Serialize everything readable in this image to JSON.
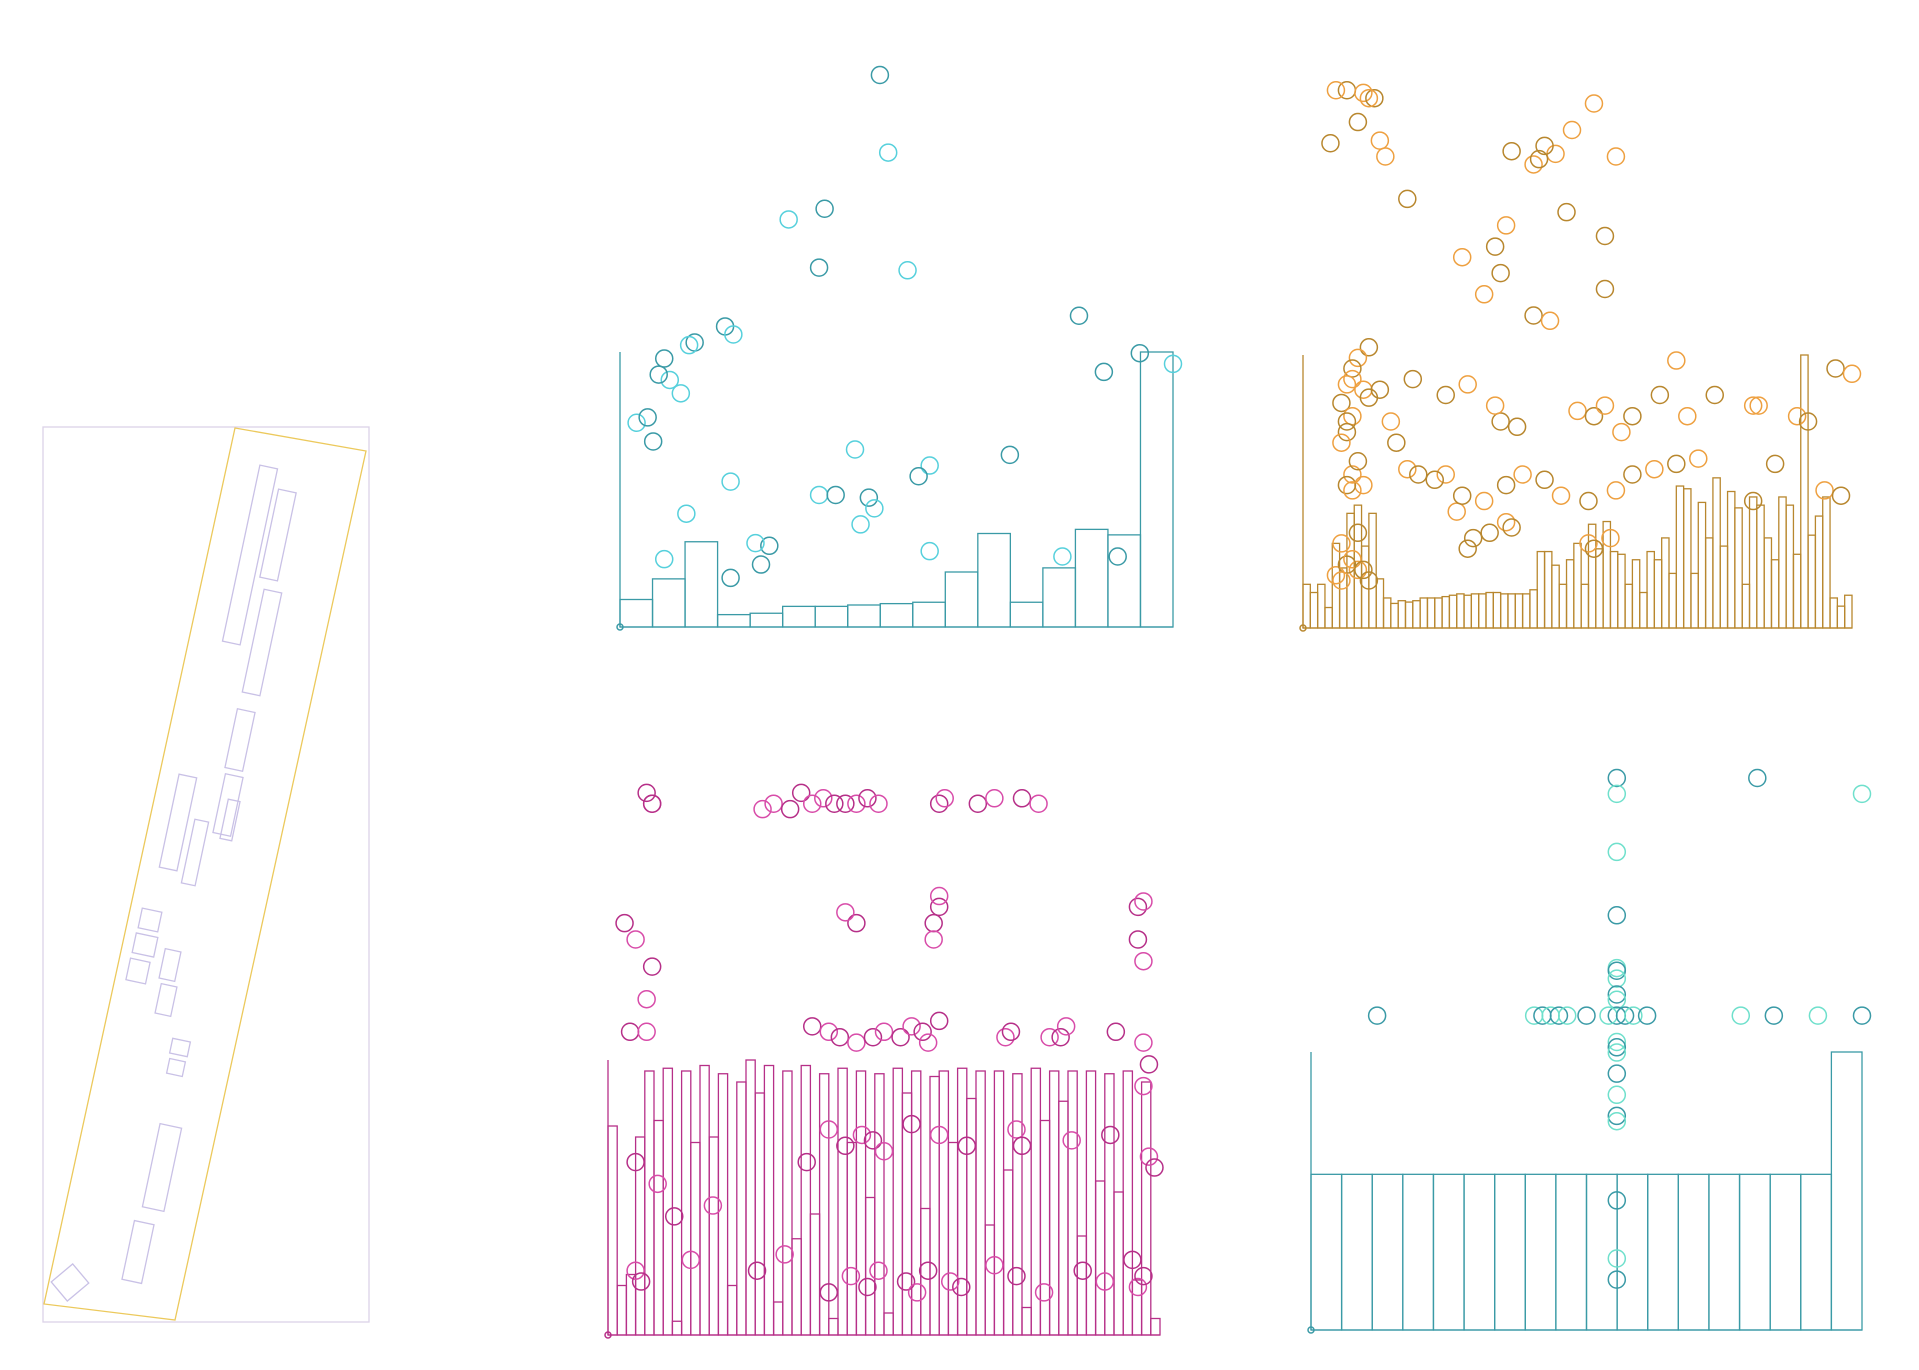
{
  "figure": {
    "colors": {
      "site_frame": "#dcd3e8",
      "parcel": "#ecc95c",
      "buildings": "#c9c1e6",
      "teal": "#3a9aa6",
      "cyan": "#56d0dc",
      "gold": "#b8872e",
      "orange": "#eea040",
      "magenta": "#b62f88",
      "pink": "#d84ca9",
      "aqua": "#6fe0cc"
    }
  },
  "chart_data": [
    {
      "type": "histogram+scatter",
      "panel": "top-left",
      "bar_color": "#3a9aa6",
      "bar_values": [
        0.1,
        0.175,
        0.31,
        0.045,
        0.05,
        0.075,
        0.075,
        0.08,
        0.085,
        0.09,
        0.2,
        0.34,
        0.09,
        0.215,
        0.355,
        0.335,
        1.0
      ],
      "scatter_colors": [
        "#3a9aa6",
        "#56d0dc"
      ],
      "scatter_x": [
        0.47,
        0.485,
        0.37,
        0.305,
        0.36,
        0.52,
        0.83,
        1.0,
        0.875,
        0.09,
        0.19,
        0.205,
        0.135,
        0.11,
        0.07,
        0.125,
        0.08,
        0.2,
        0.06,
        0.03,
        0.05,
        0.36,
        0.705,
        0.56,
        0.54,
        0.425,
        0.94,
        0.56,
        0.39,
        0.435,
        0.45,
        0.46,
        0.2,
        0.08,
        0.27,
        0.8,
        0.9,
        0.245,
        0.255,
        0.12
      ],
      "scatter_y": [
        1.0,
        0.855,
        0.75,
        0.73,
        0.64,
        0.635,
        0.55,
        0.46,
        0.445,
        0.43,
        0.53,
        0.515,
        0.5,
        0.405,
        0.44,
        0.495,
        0.47,
        0.24,
        0.315,
        0.35,
        0.36,
        0.215,
        0.29,
        0.27,
        0.25,
        0.3,
        0.48,
        0.11,
        0.215,
        0.16,
        0.21,
        0.19,
        0.06,
        0.095,
        0.12,
        0.1,
        0.1,
        0.125,
        0.085,
        0.18
      ]
    },
    {
      "type": "histogram+scatter",
      "panel": "top-right",
      "bar_color": "#b8872e",
      "bar_values": [
        0.16,
        0.13,
        0.16,
        0.075,
        0.31,
        0.22,
        0.42,
        0.45,
        0.3,
        0.42,
        0.18,
        0.11,
        0.09,
        0.1,
        0.095,
        0.1,
        0.11,
        0.11,
        0.11,
        0.115,
        0.12,
        0.125,
        0.12,
        0.125,
        0.125,
        0.13,
        0.13,
        0.125,
        0.125,
        0.125,
        0.125,
        0.14,
        0.28,
        0.28,
        0.23,
        0.16,
        0.25,
        0.31,
        0.16,
        0.38,
        0.29,
        0.39,
        0.28,
        0.27,
        0.16,
        0.25,
        0.13,
        0.28,
        0.25,
        0.33,
        0.2,
        0.52,
        0.51,
        0.2,
        0.46,
        0.33,
        0.55,
        0.3,
        0.5,
        0.44,
        0.16,
        0.48,
        0.45,
        0.33,
        0.25,
        0.48,
        0.45,
        0.27,
        1.0,
        0.34,
        0.41,
        0.48,
        0.11,
        0.08,
        0.12
      ],
      "scatter_colors": [
        "#b8872e",
        "#eea040"
      ],
      "scatter_x": [
        0.08,
        0.11,
        0.13,
        0.12,
        0.05,
        0.14,
        0.19,
        0.15,
        0.1,
        0.06,
        0.35,
        0.33,
        0.36,
        0.37,
        0.38,
        0.46,
        0.44,
        0.42,
        0.43,
        0.53,
        0.55,
        0.57,
        0.48,
        0.49,
        0.36,
        0.3,
        0.26,
        0.29,
        0.55,
        0.68,
        0.82,
        0.83,
        0.97,
        1.0,
        0.12,
        0.1,
        0.09,
        0.08,
        0.07,
        0.11,
        0.12,
        0.09,
        0.08,
        0.16,
        0.17,
        0.07,
        0.08,
        0.19,
        0.21,
        0.09,
        0.1,
        0.11,
        0.08,
        0.09,
        0.1,
        0.07,
        0.34,
        0.37,
        0.38,
        0.52,
        0.53,
        0.56,
        0.42,
        0.45,
        0.31,
        0.28,
        0.3,
        0.35,
        0.39,
        0.5,
        0.53,
        0.55,
        0.6,
        0.58,
        0.65,
        0.7,
        0.75,
        0.82,
        0.86,
        0.9,
        0.92,
        0.95,
        0.98,
        0.72,
        0.68,
        0.64,
        0.6,
        0.57,
        0.52,
        0.47,
        0.44,
        0.4,
        0.37,
        0.33,
        0.29,
        0.26,
        0.24,
        0.1,
        0.12,
        0.06,
        0.08,
        0.09,
        0.11,
        0.07,
        0.2,
        0.09,
        0.14
      ],
      "scatter_y": [
        0.975,
        0.97,
        0.96,
        0.96,
        0.875,
        0.88,
        0.77,
        0.85,
        0.915,
        0.975,
        0.68,
        0.59,
        0.63,
        0.72,
        0.86,
        0.855,
        0.87,
        0.835,
        0.845,
        0.95,
        0.7,
        0.85,
        0.745,
        0.9,
        0.35,
        0.42,
        0.4,
        0.66,
        0.6,
        0.465,
        0.2,
        0.38,
        0.45,
        0.44,
        0.49,
        0.47,
        0.45,
        0.42,
        0.385,
        0.41,
        0.395,
        0.36,
        0.33,
        0.35,
        0.31,
        0.31,
        0.35,
        0.26,
        0.25,
        0.25,
        0.275,
        0.23,
        0.23,
        0.22,
        0.14,
        0.12,
        0.14,
        0.16,
        0.15,
        0.12,
        0.11,
        0.13,
        0.55,
        0.54,
        0.13,
        0.18,
        0.11,
        0.38,
        0.34,
        0.37,
        0.36,
        0.38,
        0.36,
        0.33,
        0.4,
        0.36,
        0.4,
        0.38,
        0.27,
        0.36,
        0.35,
        0.22,
        0.21,
        0.28,
        0.27,
        0.26,
        0.25,
        0.22,
        0.2,
        0.21,
        0.24,
        0.25,
        0.23,
        0.2,
        0.21,
        0.25,
        0.24,
        0.07,
        0.05,
        0.06,
        0.08,
        0.09,
        0.07,
        0.05,
        0.43,
        0.43,
        0.41
      ]
    },
    {
      "type": "histogram+scatter",
      "panel": "bottom-left",
      "bar_color": "#b62f88",
      "bar_values": [
        0.76,
        0.18,
        0.22,
        0.72,
        0.96,
        0.78,
        0.97,
        0.05,
        0.96,
        0.7,
        0.98,
        0.72,
        0.95,
        0.18,
        0.92,
        1.0,
        0.88,
        0.98,
        0.12,
        0.96,
        0.35,
        0.98,
        0.44,
        0.95,
        0.06,
        0.97,
        0.7,
        0.96,
        0.5,
        0.95,
        0.08,
        0.97,
        0.88,
        0.96,
        0.46,
        0.94,
        0.96,
        0.7,
        0.97,
        0.86,
        0.96,
        0.4,
        0.96,
        0.6,
        0.95,
        0.1,
        0.97,
        0.78,
        0.96,
        0.85,
        0.96,
        0.36,
        0.96,
        0.56,
        0.95,
        0.52,
        0.96,
        0.2,
        0.92,
        0.06
      ],
      "scatter_colors": [
        "#b62f88",
        "#d84ca9"
      ],
      "scatter_x": [
        0.07,
        0.08,
        0.08,
        0.3,
        0.35,
        0.39,
        0.43,
        0.45,
        0.47,
        0.28,
        0.33,
        0.37,
        0.41,
        0.49,
        0.6,
        0.61,
        0.67,
        0.7,
        0.75,
        0.78,
        0.03,
        0.05,
        0.08,
        0.07,
        0.45,
        0.43,
        0.6,
        0.6,
        0.59,
        0.59,
        0.96,
        0.97,
        0.96,
        0.97,
        0.04,
        0.07,
        0.37,
        0.4,
        0.42,
        0.45,
        0.48,
        0.5,
        0.53,
        0.55,
        0.57,
        0.58,
        0.6,
        0.72,
        0.73,
        0.8,
        0.82,
        0.83,
        0.92,
        0.97,
        0.98,
        0.97,
        0.05,
        0.09,
        0.12,
        0.19,
        0.36,
        0.4,
        0.43,
        0.46,
        0.48,
        0.5,
        0.55,
        0.6,
        0.65,
        0.74,
        0.75,
        0.84,
        0.91,
        0.98,
        0.99,
        0.05,
        0.06,
        0.15,
        0.27,
        0.32,
        0.4,
        0.44,
        0.47,
        0.49,
        0.54,
        0.56,
        0.58,
        0.62,
        0.64,
        0.7,
        0.74,
        0.79,
        0.86,
        0.9,
        0.95,
        0.96,
        0.97
      ],
      "scatter_y": [
        0.98,
        0.96,
        0.96,
        0.96,
        0.98,
        0.97,
        0.96,
        0.96,
        0.97,
        0.95,
        0.95,
        0.96,
        0.96,
        0.96,
        0.96,
        0.97,
        0.96,
        0.97,
        0.97,
        0.96,
        0.74,
        0.71,
        0.66,
        0.6,
        0.74,
        0.76,
        0.77,
        0.79,
        0.74,
        0.71,
        0.77,
        0.78,
        0.71,
        0.67,
        0.54,
        0.54,
        0.55,
        0.54,
        0.53,
        0.52,
        0.53,
        0.54,
        0.53,
        0.55,
        0.54,
        0.52,
        0.56,
        0.53,
        0.54,
        0.53,
        0.53,
        0.55,
        0.54,
        0.52,
        0.48,
        0.44,
        0.3,
        0.26,
        0.2,
        0.22,
        0.3,
        0.36,
        0.33,
        0.35,
        0.34,
        0.32,
        0.37,
        0.35,
        0.33,
        0.36,
        0.33,
        0.34,
        0.35,
        0.31,
        0.29,
        0.1,
        0.08,
        0.12,
        0.1,
        0.13,
        0.06,
        0.09,
        0.07,
        0.1,
        0.08,
        0.06,
        0.1,
        0.08,
        0.07,
        0.11,
        0.09,
        0.06,
        0.1,
        0.08,
        0.12,
        0.07,
        0.09
      ]
    },
    {
      "type": "histogram+scatter",
      "panel": "bottom-right",
      "bar_color": "#3a9aa6",
      "bar_values": [
        0.56,
        0.56,
        0.56,
        0.56,
        0.56,
        0.56,
        0.56,
        0.56,
        0.56,
        0.56,
        0.56,
        0.56,
        0.56,
        0.56,
        0.56,
        0.56,
        0.56,
        1.0
      ],
      "scatter_colors": [
        "#3a9aa6",
        "#6fe0cc"
      ],
      "scatter_x": [
        0.555,
        0.555,
        0.555,
        0.555,
        0.555,
        0.555,
        0.555,
        0.555,
        0.555,
        0.555,
        0.555,
        0.555,
        0.555,
        0.555,
        0.555,
        0.555,
        0.555,
        0.555,
        0.555,
        0.555,
        0.81,
        1.0,
        0.12,
        0.405,
        0.42,
        0.435,
        0.45,
        0.465,
        0.5,
        0.54,
        0.57,
        0.585,
        0.61,
        0.78,
        0.84,
        0.92,
        1.0
      ],
      "scatter_y": [
        1.0,
        0.86,
        0.74,
        0.64,
        0.635,
        0.62,
        0.59,
        0.58,
        0.55,
        0.5,
        0.49,
        0.48,
        0.44,
        0.4,
        0.36,
        0.35,
        0.2,
        0.09,
        0.05,
        0.97,
        1.0,
        0.97,
        0.55,
        0.55,
        0.55,
        0.55,
        0.55,
        0.55,
        0.55,
        0.55,
        0.55,
        0.55,
        0.55,
        0.55,
        0.55,
        0.55,
        0.55
      ]
    }
  ]
}
